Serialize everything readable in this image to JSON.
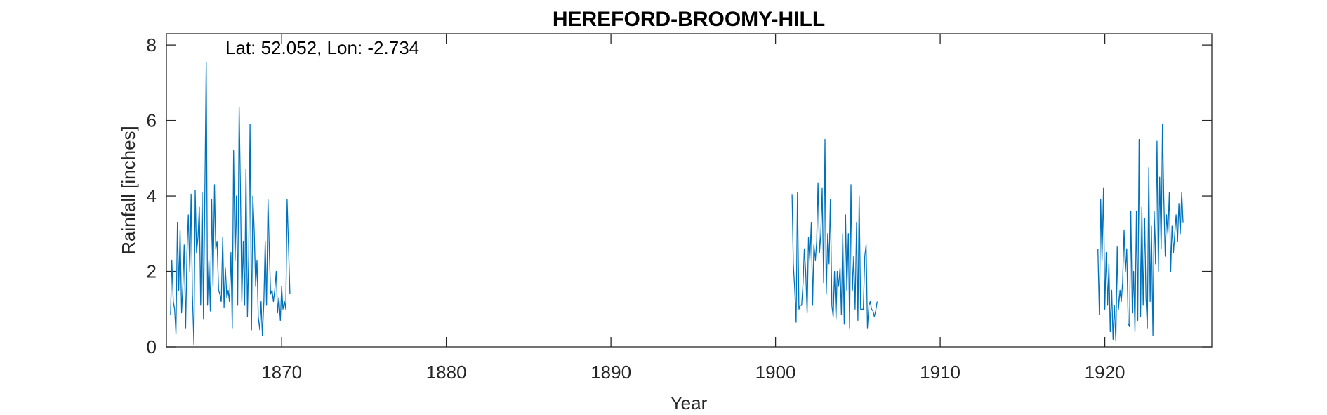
{
  "chart_data": {
    "type": "line",
    "title": "HEREFORD-BROOMY-HILL",
    "xlabel": "Year",
    "ylabel": "Rainfall [inches]",
    "annotation": "Lat: 52.052, Lon: -2.734",
    "xlim": [
      1863,
      1926.5
    ],
    "ylim": [
      0,
      8.3
    ],
    "xticks": [
      1870,
      1880,
      1890,
      1900,
      1910,
      1920
    ],
    "yticks": [
      0,
      2,
      4,
      6,
      8
    ],
    "grid": false,
    "line_color": "#0072BD",
    "series": [
      {
        "segments": [
          {
            "x": [
              1863.25,
              1863.33,
              1863.42,
              1863.5,
              1863.58,
              1863.67,
              1863.75,
              1863.83,
              1863.92,
              1864.0,
              1864.08,
              1864.17,
              1864.25,
              1864.33,
              1864.42,
              1864.5,
              1864.58,
              1864.67,
              1864.75,
              1864.83,
              1864.92,
              1865.0,
              1865.08,
              1865.17,
              1865.25,
              1865.33,
              1865.42,
              1865.5,
              1865.58,
              1865.67,
              1865.75,
              1865.83,
              1865.92,
              1866.0,
              1866.08,
              1866.17,
              1866.25,
              1866.33,
              1866.42,
              1866.5,
              1866.58,
              1866.67,
              1866.75,
              1866.83,
              1866.92,
              1867.0,
              1867.08,
              1867.17,
              1867.25,
              1867.33,
              1867.42,
              1867.5,
              1867.58,
              1867.67,
              1867.75,
              1867.83,
              1867.92,
              1868.0,
              1868.08,
              1868.17,
              1868.25,
              1868.33,
              1868.42,
              1868.5,
              1868.58,
              1868.67,
              1868.75,
              1868.83,
              1868.92,
              1869.0,
              1869.08,
              1869.17,
              1869.25,
              1869.33,
              1869.42,
              1869.5,
              1869.58,
              1869.67,
              1869.75,
              1869.83,
              1869.92,
              1870.0,
              1870.08,
              1870.17,
              1870.25,
              1870.33,
              1870.42,
              1870.5
            ],
            "y": [
              0.85,
              2.3,
              1.2,
              1.0,
              0.35,
              3.3,
              1.5,
              3.1,
              0.9,
              1.6,
              2.7,
              0.5,
              2.5,
              3.5,
              2.0,
              4.05,
              1.4,
              0.05,
              4.15,
              2.5,
              2.9,
              3.7,
              1.1,
              4.1,
              0.75,
              3.8,
              7.55,
              1.1,
              2.3,
              0.95,
              3.9,
              1.6,
              4.3,
              2.6,
              2.8,
              1.5,
              1.4,
              1.2,
              2.9,
              1.05,
              2.1,
              1.3,
              1.5,
              1.2,
              2.5,
              0.5,
              5.2,
              2.3,
              4.0,
              1.1,
              6.35,
              4.1,
              1.2,
              2.8,
              1.1,
              4.7,
              0.8,
              2.4,
              5.9,
              0.45,
              4.0,
              3.1,
              1.6,
              2.3,
              0.8,
              0.45,
              1.2,
              0.3,
              1.2,
              2.8,
              1.1,
              3.9,
              2.5,
              1.4,
              1.5,
              1.2,
              1.5,
              2.0,
              0.9,
              1.3,
              0.7,
              1.6,
              1.0,
              1.2,
              1.0,
              3.9,
              2.6,
              1.4
            ]
          },
          {
            "x": [
              1901.0,
              1901.08,
              1901.17,
              1901.25,
              1901.33,
              1901.42,
              1901.5,
              1901.58,
              1901.67,
              1901.75,
              1901.83,
              1901.92,
              1902.0,
              1902.08,
              1902.17,
              1902.25,
              1902.33,
              1902.42,
              1902.5,
              1902.58,
              1902.67,
              1902.75,
              1902.83,
              1902.92,
              1903.0,
              1903.08,
              1903.17,
              1903.25,
              1903.33,
              1903.42,
              1903.5,
              1903.58,
              1903.67,
              1903.75,
              1903.83,
              1903.92,
              1904.0,
              1904.08,
              1904.17,
              1904.25,
              1904.33,
              1904.42,
              1904.5,
              1904.58,
              1904.67,
              1904.75,
              1904.83,
              1904.92,
              1905.0,
              1905.08,
              1905.17,
              1905.25,
              1905.33,
              1905.42,
              1905.5,
              1905.58,
              1905.67,
              1905.75,
              1905.83,
              1905.92,
              1906.0,
              1906.08,
              1906.17
            ],
            "y": [
              4.05,
              2.2,
              1.5,
              0.65,
              4.1,
              1.0,
              1.1,
              1.1,
              1.7,
              2.6,
              2.0,
              0.9,
              2.9,
              2.3,
              3.3,
              1.1,
              2.7,
              2.3,
              2.8,
              4.35,
              2.5,
              3.0,
              4.2,
              1.7,
              5.5,
              1.4,
              3.0,
              2.2,
              3.9,
              1.1,
              0.8,
              2.0,
              0.75,
              2.0,
              1.6,
              2.1,
              0.85,
              3.0,
              0.6,
              3.5,
              1.5,
              3.0,
              0.5,
              4.3,
              1.5,
              2.4,
              1.0,
              3.3,
              0.7,
              4.0,
              1.0,
              1.0,
              1.0,
              2.4,
              2.7,
              0.5,
              1.1,
              1.2,
              1.0,
              0.95,
              0.8,
              0.95,
              1.2
            ]
          },
          {
            "x": [
              1919.58,
              1919.67,
              1919.75,
              1919.83,
              1919.92,
              1920.0,
              1920.08,
              1920.17,
              1920.25,
              1920.33,
              1920.42,
              1920.5,
              1920.58,
              1920.67,
              1920.75,
              1920.83,
              1920.92,
              1921.0,
              1921.08,
              1921.17,
              1921.25,
              1921.33,
              1921.42,
              1921.5,
              1921.58,
              1921.67,
              1921.75,
              1921.83,
              1921.92,
              1922.0,
              1922.08,
              1922.17,
              1922.25,
              1922.33,
              1922.42,
              1922.5,
              1922.58,
              1922.67,
              1922.75,
              1922.83,
              1922.92,
              1923.0,
              1923.08,
              1923.17,
              1923.25,
              1923.33,
              1923.42,
              1923.5,
              1923.58,
              1923.67,
              1923.75,
              1923.83,
              1923.92,
              1924.0,
              1924.08,
              1924.17,
              1924.25,
              1924.33,
              1924.42,
              1924.5,
              1924.58,
              1924.67,
              1924.75
            ],
            "y": [
              2.6,
              0.85,
              3.9,
              2.3,
              4.2,
              1.0,
              2.5,
              1.1,
              2.2,
              0.4,
              1.5,
              0.2,
              1.1,
              0.15,
              2.65,
              1.0,
              1.5,
              1.2,
              1.7,
              3.1,
              2.0,
              2.6,
              0.6,
              0.55,
              3.6,
              0.9,
              2.0,
              0.4,
              3.6,
              0.7,
              5.5,
              0.8,
              3.7,
              1.1,
              3.4,
              1.3,
              0.5,
              4.75,
              1.2,
              3.2,
              0.3,
              3.6,
              2.2,
              5.45,
              2.0,
              4.5,
              2.6,
              5.9,
              4.0,
              2.4,
              3.5,
              3.0,
              4.1,
              2.0,
              3.2,
              2.5,
              3.0,
              3.5,
              2.8,
              3.8,
              3.0,
              4.1,
              3.3
            ]
          }
        ]
      }
    ]
  }
}
